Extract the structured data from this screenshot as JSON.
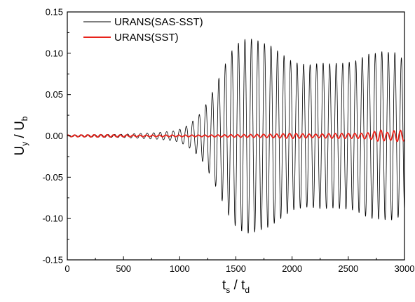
{
  "chart_data": {
    "type": "line",
    "title": "",
    "xlabel": "t",
    "xlabel_sub_1": "s",
    "xlabel_sep": " / t",
    "xlabel_sub_2": "d",
    "ylabel": "U",
    "ylabel_sub_1": "y",
    "ylabel_sep": " / U",
    "ylabel_sub_2": "b",
    "xlim": [
      0,
      3000
    ],
    "ylim": [
      -0.15,
      0.15
    ],
    "x_ticks": [
      0,
      500,
      1000,
      1500,
      2000,
      2500,
      3000
    ],
    "x_tick_labels": [
      "0",
      "500",
      "1000",
      "1500",
      "2000",
      "2500",
      "3000"
    ],
    "y_ticks": [
      -0.15,
      -0.1,
      -0.05,
      0.0,
      0.05,
      0.1,
      0.15
    ],
    "y_tick_labels": [
      "-0.15",
      "-0.10",
      "-0.05",
      "0.00",
      "0.05",
      "0.10",
      "0.15"
    ],
    "grid": false,
    "legend_position": "top-left",
    "series": [
      {
        "name": "URANS(SAS-SST)",
        "color": "#000000",
        "oscillation_period": 58,
        "envelope_t": [
          0,
          500,
          800,
          950,
          1000,
          1050,
          1100,
          1150,
          1200,
          1250,
          1300,
          1350,
          1400,
          1450,
          1500,
          1550,
          1600,
          1650,
          1700,
          1750,
          1800,
          1850,
          1900,
          1950,
          2000,
          2050,
          2100,
          2150,
          2200,
          2250,
          2300,
          2350,
          2400,
          2450,
          2500,
          2550,
          2600,
          2650,
          2700,
          2750,
          2800,
          2850,
          2900,
          2950,
          3000
        ],
        "envelope_amplitude": [
          0.001,
          0.002,
          0.004,
          0.006,
          0.008,
          0.011,
          0.016,
          0.022,
          0.03,
          0.042,
          0.055,
          0.07,
          0.085,
          0.1,
          0.11,
          0.115,
          0.118,
          0.117,
          0.115,
          0.112,
          0.11,
          0.105,
          0.1,
          0.095,
          0.09,
          0.088,
          0.087,
          0.086,
          0.087,
          0.088,
          0.088,
          0.087,
          0.088,
          0.088,
          0.089,
          0.09,
          0.093,
          0.097,
          0.1,
          0.1,
          0.102,
          0.101,
          0.102,
          0.098,
          0.09
        ]
      },
      {
        "name": "URANS(SST)",
        "color": "#e8231b",
        "oscillation_period": 58,
        "envelope_t": [
          0,
          300,
          600,
          900,
          1200,
          1500,
          1800,
          2000,
          2200,
          2400,
          2600,
          2700,
          2750,
          2800,
          2850,
          2900,
          2950,
          3000
        ],
        "envelope_amplitude": [
          0.001,
          0.0015,
          0.001,
          0.001,
          0.001,
          0.0015,
          0.002,
          0.003,
          0.002,
          0.003,
          0.003,
          0.004,
          0.006,
          0.007,
          0.004,
          0.006,
          0.007,
          0.006
        ]
      }
    ]
  }
}
